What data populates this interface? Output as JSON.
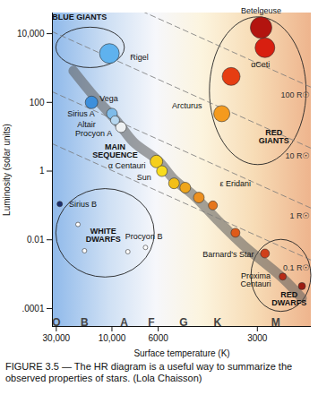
{
  "chart_data": {
    "type": "scatter",
    "caption": "FIGURE 3.5 — The HR diagram is a useful way to summarize the observed properties of stars. (Lola Chaisson)",
    "x_label": "Surface temperature (K)",
    "y_label": "Luminosity (solar units)",
    "log": "y",
    "grid": false,
    "xlim": [
      34000,
      2300
    ],
    "xticks": [
      {
        "value": 30000,
        "label": "30,000"
      },
      {
        "value": 10000,
        "label": "10,000"
      },
      6000,
      3000
    ],
    "ylim": [
      3e-05,
      40000
    ],
    "yticks": [
      {
        "value": 0.0001,
        "label": ".0001"
      },
      0.01,
      1,
      100,
      {
        "value": 10000,
        "label": "10,000"
      }
    ],
    "stars": [
      {
        "label": "Rigel",
        "x": 10350,
        "y": 2650,
        "color": "#5fb2ee",
        "size": 11,
        "label_x": 7220,
        "label_y": 1990
      },
      {
        "label": "Vega",
        "x": 13600,
        "y": 100,
        "color": "#3d8fdc",
        "size": 7,
        "label_x": 10420,
        "label_y": 126
      },
      {
        "label": "Sirius A",
        "x": 10000,
        "y": 47,
        "color": "#7dbbe9",
        "size": 6,
        "label_x": 16420,
        "label_y": 45
      },
      {
        "label": "Altair",
        "x": 9600,
        "y": 30,
        "color": "#b7d7ef",
        "size": 5,
        "label_x": 14840,
        "label_y": 23
      },
      {
        "label": "Procyon A",
        "x": 8900,
        "y": 19,
        "color": "#eef1f3",
        "size": 6,
        "label_x": 13110,
        "label_y": 12.1
      },
      {
        "label": "α Centauri",
        "x": 6100,
        "y": 1.9,
        "color": "#f5cf1c",
        "size": 7,
        "label_x": 8300,
        "label_y": 1.39
      },
      {
        "label": "Sun",
        "x": 5800,
        "y": 1,
        "color": "#f8dc1e",
        "size": 6,
        "label_x": 6890,
        "label_y": 0.64
      },
      {
        "x": 5230,
        "y": 0.44,
        "color": "#f2bf17",
        "size": 6
      },
      {
        "x": 4780,
        "y": 0.33,
        "color": "#efa61b",
        "size": 6
      },
      {
        "label": "ε Eridani",
        "x": 4320,
        "y": 0.17,
        "color": "#ec9020",
        "size": 6,
        "label_x": 3400,
        "label_y": 0.42
      },
      {
        "x": 3920,
        "y": 0.1,
        "color": "#e6761c",
        "size": 5
      },
      {
        "x": 3400,
        "y": 0.016,
        "color": "#de5a19",
        "size": 5
      },
      {
        "label": "Barnard's Star",
        "x": 2880,
        "y": 0.004,
        "color": "#d0401a",
        "size": 5,
        "label_x": 3550,
        "label_y": 0.00366
      },
      {
        "label": "Proxima\nCentauri",
        "x": 2630,
        "y": 0.00085,
        "color": "#b72a17",
        "size": 4,
        "label_x": 3025,
        "label_y": 0.00068
      },
      {
        "x": 2400,
        "y": 0.00045,
        "color": "#9c1c12",
        "size": 4
      },
      {
        "label": "Betelgeuse",
        "x": 2940,
        "y": 15000,
        "color": "#b3140f",
        "size": 12,
        "label_x": 2940,
        "label_y": 45000
      },
      {
        "x": 2880,
        "y": 3900,
        "color": "#d81f10",
        "size": 11
      },
      {
        "label": "αCeti",
        "x": 3490,
        "y": 570,
        "color": "#e63d12",
        "size": 10,
        "label_x": 2950,
        "label_y": 1230
      },
      {
        "label": "Arcturus",
        "x": 3700,
        "y": 47,
        "color": "#f49a1e",
        "size": 9,
        "label_x": 4720,
        "label_y": 78
      },
      {
        "label": "Sirius B",
        "x": 27100,
        "y": 0.11,
        "color": "#1c2e6e",
        "size": 3,
        "label_x": 15870,
        "label_y": 0.11
      },
      {
        "x": 17500,
        "y": 0.028,
        "color": "#ffffff",
        "size": 2.5
      },
      {
        "x": 15400,
        "y": 0.0048,
        "color": "#ffffff",
        "size": 2.5
      },
      {
        "x": 8200,
        "y": 0.0045,
        "color": "#ffffff",
        "size": 2.5
      },
      {
        "label": "Procyon B",
        "x": 6780,
        "y": 0.006,
        "color": "#ffffff",
        "size": 2.5,
        "label_x": 6890,
        "label_y": 0.0121
      }
    ],
    "main_sequence": {
      "label": "MAIN\nSEQUENCE",
      "x": [
        19300,
        12900,
        9300,
        7670,
        6000,
        5235,
        4470,
        3800,
        3245,
        2630,
        2400
      ],
      "y": [
        830,
        143,
        27,
        6.9,
        2.0,
        0.58,
        0.19,
        0.037,
        0.0069,
        0.00077,
        0.0002
      ],
      "label_x": 9600,
      "label_y": 3.9
    },
    "radius_lines": [
      {
        "label": "100 R☉",
        "x": [
          34000,
          2300
        ],
        "y": [
          670000,
          274
        ]
      },
      {
        "label": "10 R☉",
        "x": [
          34000,
          2300
        ],
        "y": [
          11400,
          4.6
        ]
      },
      {
        "label": "1 R☉",
        "x": [
          34000,
          2300
        ],
        "y": [
          203,
          0.083
        ]
      },
      {
        "label": "0.1 R☉",
        "x": [
          34000,
          2300
        ],
        "y": [
          6.25,
          0.00255
        ]
      }
    ],
    "regions": [
      {
        "label": "BLUE GIANTS",
        "x": [
          30000,
          8500
        ],
        "y": [
          15000,
          1000
        ],
        "label_x": 17000,
        "label_y": 30000
      },
      {
        "label": "RED\nGIANTS",
        "x": [
          4000,
          2350
        ],
        "y": [
          30000,
          1.5
        ],
        "label_x": 2750,
        "label_y": 10
      },
      {
        "label": "WHITE\nDWARFS",
        "x": [
          30000,
          6200
        ],
        "y": [
          0.3,
          0.0008
        ],
        "label_x": 11300,
        "label_y": 0.0137
      },
      {
        "label": "RED\nDWARFS",
        "x": [
          3100,
          2300
        ],
        "y": [
          0.01,
          8e-05
        ],
        "label_x": 2550,
        "label_y": 0.00019
      }
    ],
    "spectral_classes": {
      "labels": [
        "O",
        "B",
        "A",
        "F",
        "G",
        "K",
        "M"
      ],
      "x": [
        30000,
        15400,
        8560,
        6400,
        4840,
        3800,
        2725
      ]
    }
  }
}
